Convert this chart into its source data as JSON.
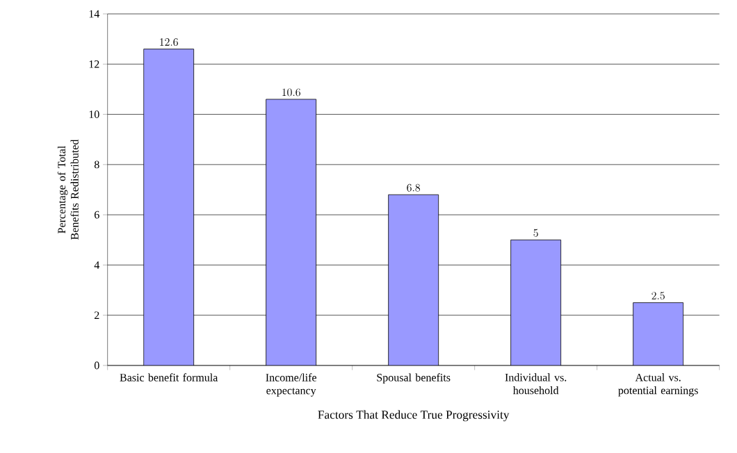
{
  "chart_data": {
    "type": "bar",
    "xlabel": "Factors That Reduce True Progressivity",
    "ylabel": "Percentage of Total Benefits Redistributed",
    "categories": [
      "Basic benefit formula",
      "Income/life expectancy",
      "Spousal benefits",
      "Individual vs. household",
      "Actual vs. potential earnings"
    ],
    "values": [
      12.6,
      10.6,
      6.8,
      5,
      2.5
    ],
    "color": "#9999ff",
    "ylim": [
      0,
      14
    ],
    "yticks": [
      0,
      2,
      4,
      6,
      8,
      10,
      12,
      14
    ],
    "grid": "y",
    "data_labels": true
  }
}
